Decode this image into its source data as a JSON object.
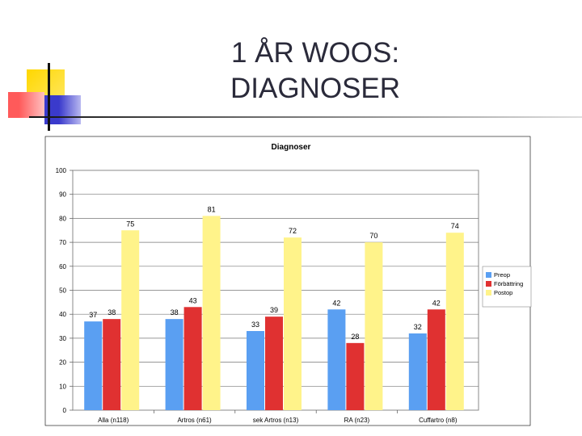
{
  "slide": {
    "title_line1": "1 ÅR WOOS:",
    "title_line2": "DIAGNOSER"
  },
  "chart_data": {
    "type": "bar",
    "title": "Diagnoser",
    "categories": [
      "Alla (n118)",
      "Artros (n61)",
      "sek Artros (n13)",
      "RA (n23)",
      "Cuffartro (n8)"
    ],
    "series": [
      {
        "name": "Preop",
        "color": "#5a9ff2",
        "values": [
          37,
          38,
          33,
          42,
          32
        ]
      },
      {
        "name": "Förbättring",
        "color": "#e03131",
        "values": [
          38,
          43,
          39,
          28,
          42
        ]
      },
      {
        "name": "Postop",
        "color": "#fff38a",
        "values": [
          75,
          81,
          72,
          70,
          74
        ]
      }
    ],
    "ylim": [
      0,
      100
    ],
    "yticks": [
      0,
      10,
      20,
      30,
      40,
      50,
      60,
      70,
      80,
      90,
      100
    ],
    "legend": "right",
    "grid": "y"
  }
}
